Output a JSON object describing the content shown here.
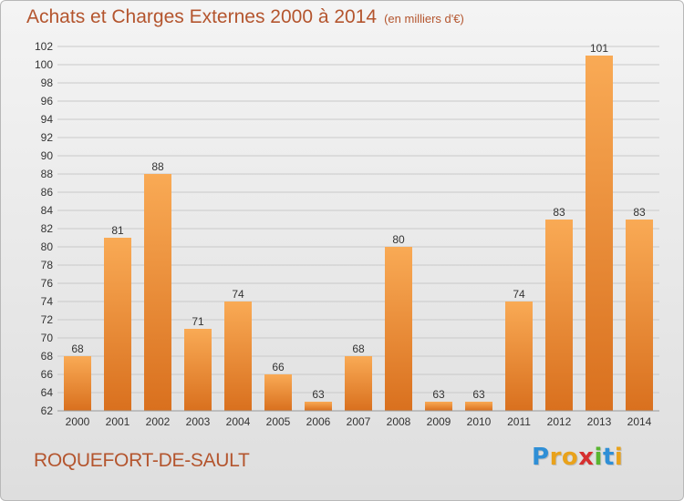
{
  "header": {
    "title": "Achats et Charges Externes 2000 à 2014",
    "unit": "(en milliers d'€)"
  },
  "footer": {
    "commune": "ROQUEFORT-DE-SAULT",
    "logo_letters": [
      "P",
      "r",
      "o",
      "x",
      "i",
      "t",
      "i"
    ],
    "logo_colors": [
      "#2f8fd6",
      "#e9a21b",
      "#e9a21b",
      "#d62f2f",
      "#59b530",
      "#2f8fd6",
      "#e9a21b"
    ]
  },
  "chart_data": {
    "type": "bar",
    "title": "Achats et Charges Externes 2000 à 2014",
    "subtitle": "(en milliers d'€)",
    "categories": [
      "2000",
      "2001",
      "2002",
      "2003",
      "2004",
      "2005",
      "2006",
      "2007",
      "2008",
      "2009",
      "2010",
      "2011",
      "2012",
      "2013",
      "2014"
    ],
    "values": [
      68,
      81,
      88,
      71,
      74,
      66,
      63,
      68,
      80,
      63,
      63,
      74,
      83,
      101,
      83
    ],
    "ylim": [
      62,
      102
    ],
    "yticks": [
      62,
      64,
      66,
      68,
      70,
      72,
      74,
      76,
      78,
      80,
      82,
      84,
      86,
      88,
      90,
      92,
      94,
      96,
      98,
      100,
      102
    ],
    "grid": true,
    "bar_color_top": "#f9aa55",
    "bar_color_bottom": "#d9701e",
    "xlabel": "",
    "ylabel": ""
  }
}
